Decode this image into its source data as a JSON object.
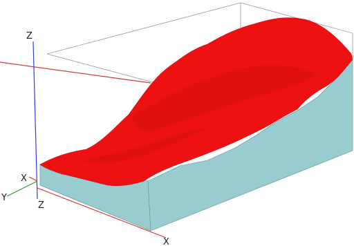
{
  "viewport": {
    "background": "#ffffff"
  },
  "axes": {
    "vertical_label": "Z",
    "origin_vertical_label": "Z",
    "origin_depth_label": "X",
    "origin_lateral_label": "Y",
    "front_horizontal_label": "X",
    "colors": {
      "z": "#3b3bd6",
      "y": "#2e9a2e",
      "x": "#d23a3a"
    }
  },
  "model": {
    "surface_color": "#ee1111",
    "surface_shade_color": "#c40d0d",
    "solid_color": "#99ccd0",
    "solid_edge_color": "#5e8f93",
    "bounding_box_color": "#9a9a9a"
  }
}
